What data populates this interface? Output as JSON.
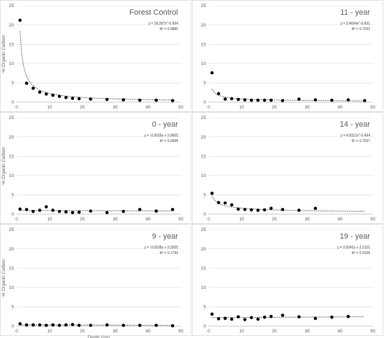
{
  "chart_data": [
    {
      "type": "scatter",
      "title": "Forest Control",
      "equation": "y = 18.287x^-0.904",
      "r2": "R² = 0.9885",
      "ylabel": "% Organic Carbon",
      "xlabel": "",
      "xlim": [
        0,
        50
      ],
      "ylim": [
        0,
        25
      ],
      "xticks": [
        "0",
        "10",
        "20",
        "30",
        "40",
        "50"
      ],
      "yticks": [
        "0",
        "5",
        "10",
        "15",
        "20",
        "25"
      ],
      "x": [
        1,
        3,
        5,
        7,
        9,
        11,
        13,
        15,
        17,
        19,
        22.5,
        27.5,
        32.5,
        37.5,
        42.5,
        47.5
      ],
      "y": [
        21.2,
        4.9,
        3.6,
        2.6,
        2.1,
        1.8,
        1.5,
        1.2,
        1.0,
        0.9,
        0.8,
        0.7,
        0.6,
        0.5,
        0.5,
        0.4
      ],
      "trend": {
        "kind": "power",
        "a": 18.287,
        "b": -0.904
      }
    },
    {
      "type": "scatter",
      "title": "11 - year",
      "equation": "y = 3.4694x^-0.601",
      "r2": "R² = 0.7032",
      "ylabel": "",
      "xlabel": "",
      "xlim": [
        0,
        50
      ],
      "ylim": [
        0,
        25
      ],
      "xticks": [
        "0",
        "10",
        "20",
        "30",
        "40",
        "50"
      ],
      "yticks": [
        "0",
        "5",
        "10",
        "15",
        "20",
        "25"
      ],
      "x": [
        1,
        3,
        5,
        7,
        9,
        11,
        13,
        15,
        17,
        19,
        22.5,
        27.5,
        32.5,
        37.5,
        42.5,
        47.5
      ],
      "y": [
        7.6,
        2.2,
        0.8,
        0.9,
        0.7,
        0.6,
        0.5,
        0.5,
        0.5,
        0.5,
        0.4,
        0.8,
        0.6,
        0.5,
        0.6,
        0.4
      ],
      "trend": {
        "kind": "power",
        "a": 3.4694,
        "b": -0.601
      }
    },
    {
      "type": "scatter",
      "title": "0 - year",
      "equation": "y = -0.0029x + 0.9665",
      "r2": "R² = 0.0098",
      "ylabel": "% Organic Carbon",
      "xlabel": "",
      "xlim": [
        0,
        50
      ],
      "ylim": [
        0,
        25
      ],
      "xticks": [
        "0",
        "10",
        "20",
        "30",
        "40",
        "50"
      ],
      "yticks": [
        "0",
        "5",
        "10",
        "15",
        "20",
        "25"
      ],
      "x": [
        1,
        3,
        5,
        7,
        9,
        11,
        13,
        15,
        17,
        19,
        22.5,
        27.5,
        32.5,
        37.5,
        42.5,
        47.5
      ],
      "y": [
        1.3,
        1.2,
        0.7,
        1.0,
        1.9,
        1.0,
        0.7,
        0.6,
        0.4,
        0.5,
        0.8,
        0.4,
        0.7,
        1.2,
        0.8,
        1.2
      ],
      "trend": {
        "kind": "linear",
        "m": -0.0029,
        "c": 0.9665
      }
    },
    {
      "type": "scatter",
      "title": "14 - year",
      "equation": "y = 4.8112x^-0.494",
      "r2": "R² = 0.7537",
      "ylabel": "",
      "xlabel": "",
      "xlim": [
        0,
        50
      ],
      "ylim": [
        0,
        25
      ],
      "xticks": [
        "0",
        "10",
        "20",
        "30",
        "40",
        "50"
      ],
      "yticks": [
        "0",
        "5",
        "10",
        "15",
        "20",
        "25"
      ],
      "x": [
        1,
        3,
        5,
        7,
        9,
        11,
        13,
        15,
        17,
        19,
        22.5,
        27.5,
        32.5
      ],
      "y": [
        5.4,
        3.0,
        2.9,
        2.4,
        1.3,
        1.2,
        1.1,
        1.0,
        1.1,
        1.5,
        1.2,
        1.0,
        1.5
      ],
      "trend": {
        "kind": "power",
        "a": 4.8112,
        "b": -0.494
      }
    },
    {
      "type": "scatter",
      "title": "9 - year",
      "equation": "y = -0.0038x + 0.3525",
      "r2": "R² = 0.1799",
      "ylabel": "% Organic Carbon",
      "xlabel": "Depth (cm)",
      "xlim": [
        0,
        50
      ],
      "ylim": [
        0,
        25
      ],
      "xticks": [
        "0",
        "10",
        "20",
        "30",
        "40",
        "50"
      ],
      "yticks": [
        "0",
        "5",
        "10",
        "15",
        "20",
        "25"
      ],
      "x": [
        1,
        3,
        5,
        7,
        9,
        11,
        13,
        15,
        17,
        19,
        22.5,
        27.5,
        32.5,
        37.5,
        42.5,
        47.5
      ],
      "y": [
        0.6,
        0.3,
        0.3,
        0.3,
        0.2,
        0.3,
        0.2,
        0.3,
        0.4,
        0.2,
        0.2,
        0.3,
        0.2,
        0.2,
        0.2,
        0.1
      ],
      "trend": {
        "kind": "linear",
        "m": -0.0038,
        "c": 0.3525
      }
    },
    {
      "type": "scatter",
      "title": "19 - year",
      "equation": "y = 0.0042x + 2.2122",
      "r2": "R² = 0.0158",
      "ylabel": "",
      "xlabel": "",
      "xlim": [
        0,
        50
      ],
      "ylim": [
        0,
        25
      ],
      "xticks": [
        "0",
        "10",
        "20",
        "30",
        "40",
        "50"
      ],
      "yticks": [
        "0",
        "5",
        "10",
        "15",
        "20",
        "25"
      ],
      "x": [
        1,
        3,
        5,
        7,
        9,
        11,
        13,
        15,
        17,
        19,
        22.5,
        27.5,
        32.5,
        37.5,
        42.5
      ],
      "y": [
        3.1,
        1.9,
        2.0,
        1.8,
        2.4,
        1.7,
        2.2,
        1.8,
        2.3,
        2.5,
        2.8,
        2.4,
        2.0,
        2.3,
        2.5
      ],
      "trend": {
        "kind": "linear",
        "m": 0.0042,
        "c": 2.2122
      }
    }
  ]
}
